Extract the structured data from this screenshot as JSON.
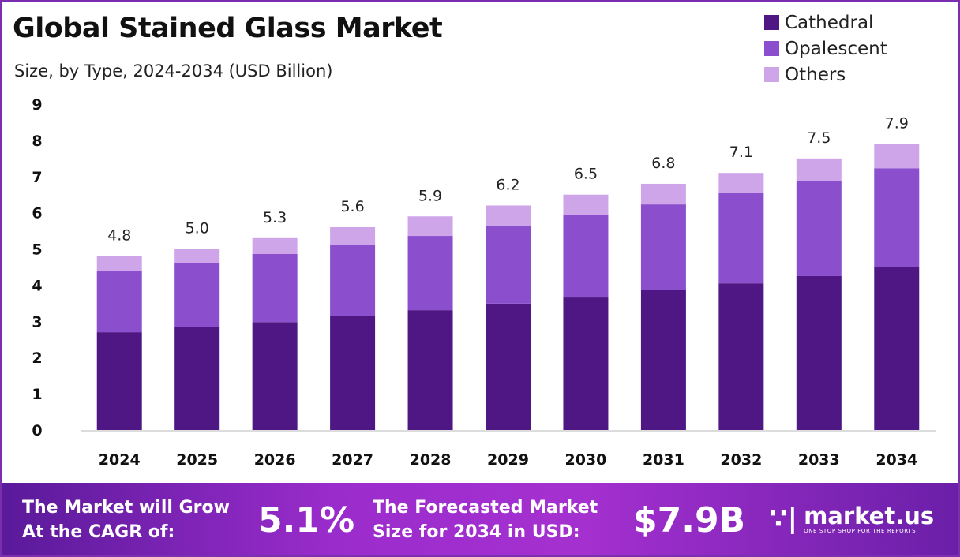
{
  "colors": {
    "Cathedral": "#4f1783",
    "Opalescent": "#8b4fce",
    "Others": "#cfa5ea"
  },
  "chart_data": {
    "type": "bar",
    "stacked": true,
    "title": "Global Stained Glass Market",
    "subtitle": "Size, by Type, 2024-2034 (USD Billion)",
    "xlabel": "",
    "ylabel": "",
    "ylim": [
      0,
      9
    ],
    "yticks": [
      "0",
      "1",
      "2",
      "3",
      "4",
      "5",
      "6",
      "7",
      "8",
      "9"
    ],
    "grid": false,
    "legend": "top-right",
    "categories": [
      "2024",
      "2025",
      "2026",
      "2027",
      "2028",
      "2029",
      "2030",
      "2031",
      "2032",
      "2033",
      "2034"
    ],
    "series": [
      {
        "name": "Cathedral",
        "values": [
          2.7,
          2.85,
          2.98,
          3.16,
          3.31,
          3.49,
          3.66,
          3.86,
          4.05,
          4.25,
          4.49
        ]
      },
      {
        "name": "Opalescent",
        "values": [
          1.68,
          1.77,
          1.88,
          1.94,
          2.05,
          2.15,
          2.27,
          2.37,
          2.49,
          2.63,
          2.74
        ]
      },
      {
        "name": "Others",
        "values": [
          0.42,
          0.38,
          0.44,
          0.5,
          0.54,
          0.56,
          0.57,
          0.57,
          0.56,
          0.62,
          0.67
        ]
      }
    ],
    "totals": [
      "4.8",
      "5.0",
      "5.3",
      "5.6",
      "5.9",
      "6.2",
      "6.5",
      "6.8",
      "7.1",
      "7.5",
      "7.9"
    ]
  },
  "footer": {
    "cagr_label_1": "The Market will Grow",
    "cagr_label_2": "At the CAGR of:",
    "cagr_value": "5.1%",
    "forecast_label_1": "The Forecasted Market",
    "forecast_label_2": "Size for 2034 in USD:",
    "forecast_value": "$7.9B",
    "logo_name": "market.us",
    "logo_tagline": "ONE STOP SHOP FOR THE REPORTS"
  }
}
